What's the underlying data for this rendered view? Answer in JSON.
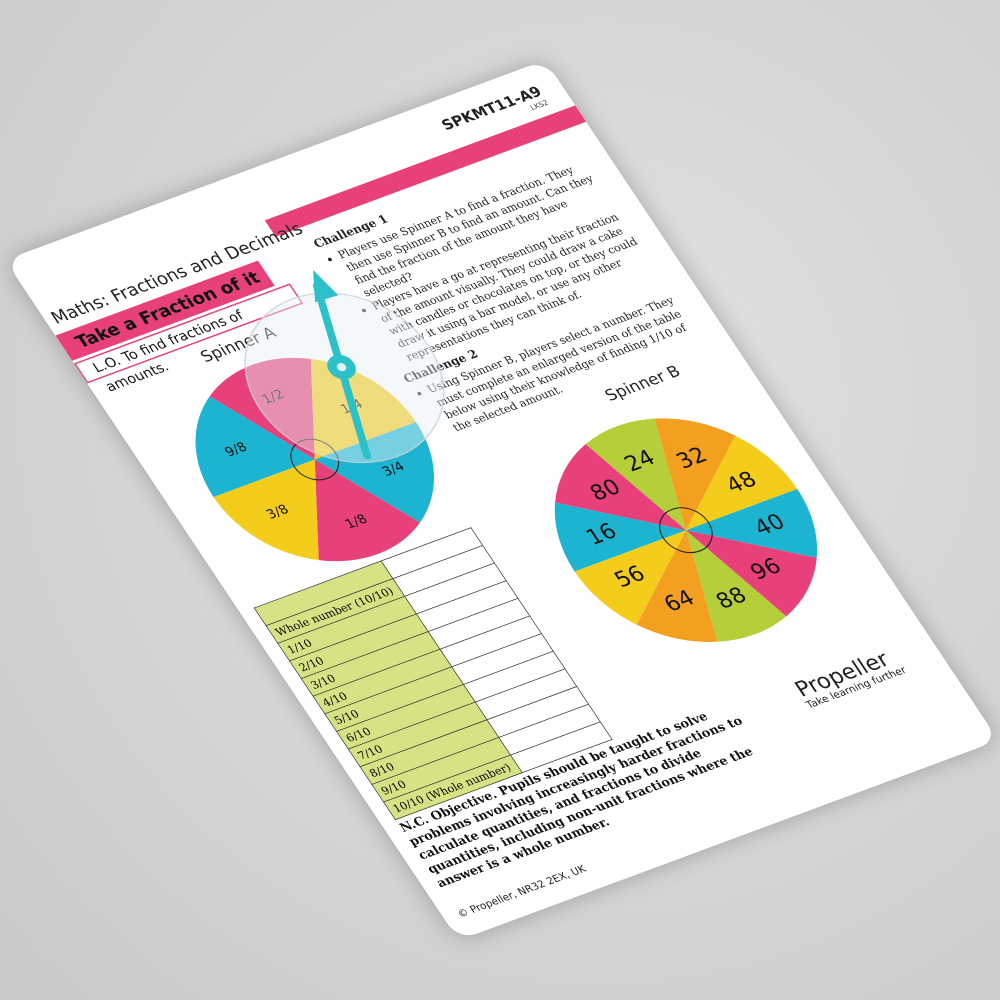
{
  "header": {
    "code": "SPKMT11-A9",
    "stage": "LKS2",
    "subject": "Maths: Fractions and Decimals",
    "title": "Take a Fraction of it",
    "objective": "L.O. To find fractions of amounts."
  },
  "spinner_a": {
    "title": "Spinner A",
    "labels": [
      "1/2",
      "1/4",
      "3/4",
      "1/8",
      "3/8",
      "9/8"
    ]
  },
  "spinner_b": {
    "title": "Spinner B",
    "labels": [
      "24",
      "32",
      "48",
      "40",
      "96",
      "88",
      "64",
      "56",
      "16",
      "80"
    ]
  },
  "challenges": [
    {
      "title": "Challenge 1",
      "bullets": [
        "Players use Spinner A to find a fraction. They then use Spinner B to find an amount. Can they find the fraction of the amount they have selected?",
        "Players have a go at representing their fraction of the amount visually. They could draw a cake with candles or chocolates on top, or they could draw it using a bar model, or use any other representations they can think of."
      ]
    },
    {
      "title": "Challenge 2",
      "bullets": [
        "Using Spinner B, players select a number. They must complete an enlarged version of the table below using their knowledge of finding 1/10 of the selected amount."
      ]
    }
  ],
  "table": {
    "rows": [
      "Whole number (10/10)",
      "1/10",
      "2/10",
      "3/10",
      "4/10",
      "5/10",
      "6/10",
      "7/10",
      "8/10",
      "9/10",
      "10/10 (Whole number)"
    ]
  },
  "objective_text": "N.C. Objective. Pupils should be taught to solve problems involving increasingly harder fractions to calculate quantities, and fractions to divide quantities, including non-unit fractions where the answer is a whole number.",
  "footer": "© Propeller, NR32 2EX, UK",
  "logo": {
    "name": "Propeller",
    "tagline": "Take learning further"
  }
}
